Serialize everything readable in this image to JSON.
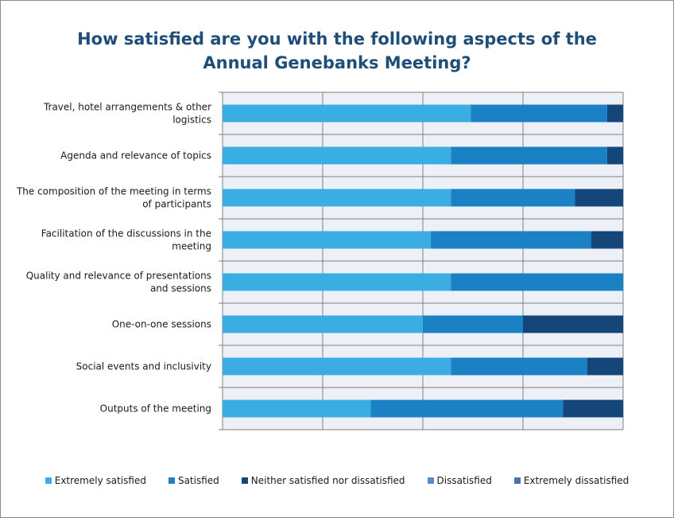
{
  "chart_data": {
    "type": "bar",
    "orientation": "horizontal",
    "stacked": "100%",
    "title": "How satisfied are you with the following aspects of the Annual Genebanks Meeting?",
    "title_lines": [
      "How satisfied are you with the following aspects of the",
      "Annual Genebanks Meeting?"
    ],
    "categories": [
      [
        "Travel, hotel arrangements & other",
        "logistics"
      ],
      [
        "Agenda and relevance of topics"
      ],
      [
        "The composition of the meeting in terms",
        "of participants"
      ],
      [
        "Facilitation of the discussions in the",
        "meeting"
      ],
      [
        "Quality and relevance of presentations",
        "and sessions"
      ],
      [
        "One-on-one sessions"
      ],
      [
        "Social events and inclusivity"
      ],
      [
        "Outputs of the meeting"
      ]
    ],
    "series": [
      {
        "name": "Extremely satisfied",
        "color": "#3aaee3",
        "values": [
          62,
          57,
          57,
          52,
          57,
          50,
          57,
          37
        ]
      },
      {
        "name": "Satisfied",
        "color": "#1b81c5",
        "values": [
          34,
          39,
          31,
          40,
          43,
          25,
          34,
          48
        ]
      },
      {
        "name": "Neither satisfied nor dissatisfied",
        "color": "#15467a",
        "values": [
          4,
          4,
          12,
          8,
          0,
          25,
          9,
          15
        ]
      },
      {
        "name": "Dissatisfied",
        "color": "#5b8ac6",
        "values": [
          0,
          0,
          0,
          0,
          0,
          0,
          0,
          0
        ]
      },
      {
        "name": "Extremely dissatisfied",
        "color": "#4a74a8",
        "values": [
          0,
          0,
          0,
          0,
          0,
          0,
          0,
          0
        ]
      }
    ],
    "xlim": [
      0,
      100
    ],
    "grid": true,
    "legend_position": "bottom",
    "plot_background": "#eef0f8"
  }
}
